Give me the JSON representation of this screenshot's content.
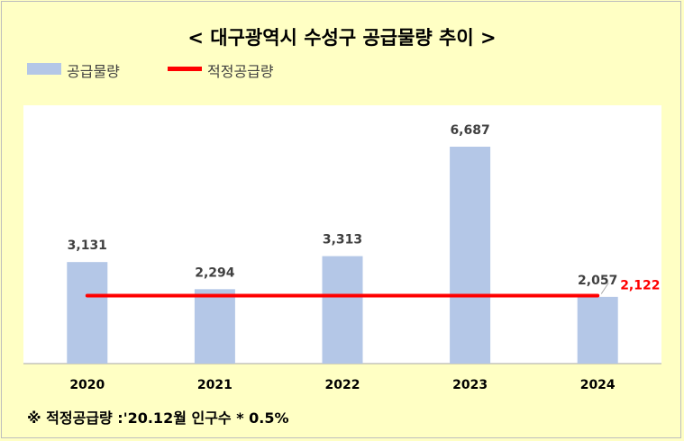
{
  "title": "< 대구광역시 수성구 공급물량 추이 >",
  "legend": {
    "bar_label": "공급물량",
    "line_label": "적정공급량"
  },
  "footnote": "※ 적정공급량 :'20.12월 인구수 * 0.5%",
  "colors": {
    "background": "#ffffc4",
    "bar": "#b4c7e7",
    "line": "#ff0000",
    "label": "#404040",
    "line_label": "#ff0000"
  },
  "chart_data": {
    "type": "bar",
    "title": "< 대구광역시 수성구 공급물량 추이 >",
    "categories": [
      "2020",
      "2021",
      "2022",
      "2023",
      "2024"
    ],
    "series": [
      {
        "name": "공급물량",
        "type": "bar",
        "values": [
          3131,
          2294,
          3313,
          6687,
          2057
        ],
        "labels": [
          "3,131",
          "2,294",
          "3,313",
          "6,687",
          "2,057"
        ]
      },
      {
        "name": "적정공급량",
        "type": "line",
        "values": [
          2122,
          2122,
          2122,
          2122,
          2122
        ],
        "end_label": "2,122"
      }
    ],
    "xlabel": "",
    "ylabel": "",
    "ylim": [
      0,
      7500
    ],
    "grid": false,
    "legend": "top-left"
  }
}
